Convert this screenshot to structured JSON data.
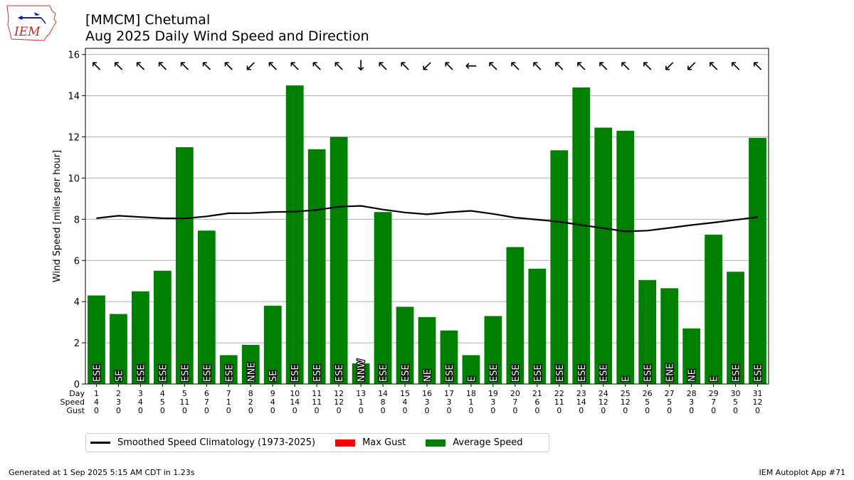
{
  "header": {
    "title_line1": "[MMCM] Chetumal",
    "title_line2": "Aug 2025 Daily Wind Speed and Direction",
    "logo_text": "IEM"
  },
  "footer": {
    "generated": "Generated at 1 Sep 2025 5:15 AM CDT in 1.23s",
    "app": "IEM Autoplot App #71"
  },
  "legend": {
    "items": [
      {
        "label": "Smoothed Speed Climatology (1973-2025)",
        "color": "#000000",
        "kind": "line"
      },
      {
        "label": "Max Gust",
        "color": "#ff0000",
        "kind": "rect"
      },
      {
        "label": "Average Speed",
        "color": "#008000",
        "kind": "rect"
      }
    ]
  },
  "chart_data": {
    "type": "bar",
    "ylabel": "Wind Speed [miles per hour]",
    "ylim": [
      0,
      16.3
    ],
    "yticks": [
      0,
      2,
      4,
      6,
      8,
      10,
      12,
      14,
      16
    ],
    "grid": true,
    "row_labels": [
      "Day",
      "Speed",
      "Gust"
    ],
    "days": [
      1,
      2,
      3,
      4,
      5,
      6,
      7,
      8,
      9,
      10,
      11,
      12,
      13,
      14,
      15,
      16,
      17,
      18,
      19,
      20,
      21,
      22,
      23,
      24,
      25,
      26,
      27,
      28,
      29,
      30,
      31
    ],
    "speed_rounded": [
      4,
      3,
      4,
      5,
      11,
      7,
      1,
      2,
      4,
      14,
      11,
      12,
      1,
      8,
      4,
      3,
      3,
      1,
      3,
      7,
      6,
      11,
      14,
      12,
      12,
      5,
      5,
      3,
      7,
      5,
      12
    ],
    "gust": [
      0,
      0,
      0,
      0,
      0,
      0,
      0,
      0,
      0,
      0,
      0,
      0,
      0,
      0,
      0,
      0,
      0,
      0,
      0,
      0,
      0,
      0,
      0,
      0,
      0,
      0,
      0,
      0,
      0,
      0,
      0
    ],
    "series": [
      {
        "name": "Average Speed",
        "color": "#008000",
        "values": [
          4.3,
          3.4,
          4.5,
          5.5,
          11.5,
          7.45,
          1.4,
          1.9,
          3.8,
          14.5,
          11.4,
          12.0,
          1.0,
          8.35,
          3.75,
          3.25,
          2.6,
          1.4,
          3.3,
          6.65,
          5.6,
          11.35,
          14.4,
          12.45,
          12.3,
          5.05,
          4.65,
          2.7,
          7.25,
          5.45,
          11.95
        ]
      },
      {
        "name": "Smoothed Speed Climatology (1973-2025)",
        "color": "#000000",
        "values": [
          8.05,
          8.17,
          8.11,
          8.05,
          8.04,
          8.14,
          8.29,
          8.3,
          8.35,
          8.37,
          8.45,
          8.61,
          8.65,
          8.47,
          8.33,
          8.24,
          8.34,
          8.41,
          8.26,
          8.08,
          7.98,
          7.88,
          7.72,
          7.57,
          7.41,
          7.45,
          7.58,
          7.72,
          7.84,
          7.97,
          8.1
        ]
      }
    ],
    "directions": [
      "ESE",
      "SE",
      "ESE",
      "ESE",
      "ESE",
      "ESE",
      "ESE",
      "NNE",
      "SE",
      "ESE",
      "ESE",
      "ESE",
      "NNW",
      "ESE",
      "ESE",
      "NE",
      "ESE",
      "E",
      "ESE",
      "ESE",
      "ESE",
      "ESE",
      "ESE",
      "ESE",
      "E",
      "ESE",
      "ENE",
      "NE",
      "E",
      "ESE",
      "ESE"
    ],
    "arrow_symbols": [
      "↖",
      "↖",
      "↖",
      "↖",
      "↖",
      "↖",
      "↖",
      "↙",
      "↖",
      "↖",
      "↖",
      "↖",
      "↓",
      "↖",
      "↖",
      "↙",
      "↖",
      "←",
      "↖",
      "↖",
      "↖",
      "↖",
      "↖",
      "↖",
      "↖",
      "↖",
      "↙",
      "↙",
      "↖",
      "↖",
      "↖"
    ]
  }
}
